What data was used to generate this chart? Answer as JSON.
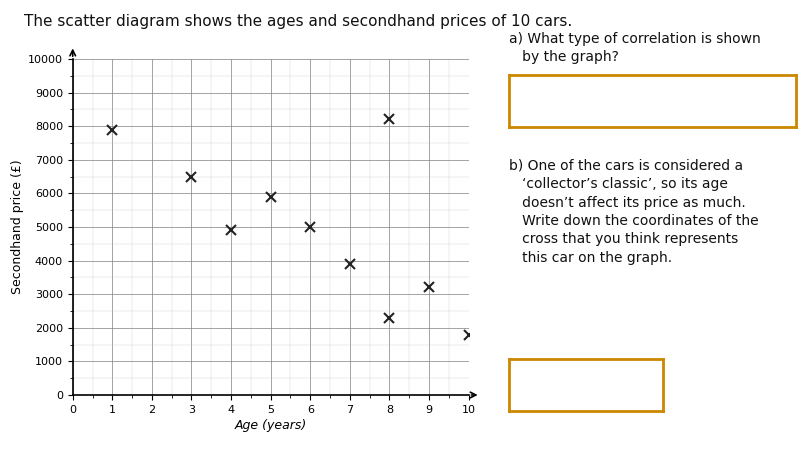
{
  "title": "The scatter diagram shows the ages and secondhand prices of 10 cars.",
  "points_x": [
    1,
    3,
    4,
    5,
    6,
    7,
    8,
    8,
    9,
    10
  ],
  "points_y": [
    7900,
    6500,
    4900,
    5900,
    5000,
    3900,
    8200,
    2300,
    3200,
    1800
  ],
  "xlabel": "Age (years)",
  "ylabel": "Secondhand price (£)",
  "xlim": [
    0,
    10
  ],
  "ylim": [
    0,
    10000
  ],
  "xticks": [
    0,
    1,
    2,
    3,
    4,
    5,
    6,
    7,
    8,
    9,
    10
  ],
  "yticks": [
    0,
    1000,
    2000,
    3000,
    4000,
    5000,
    6000,
    7000,
    8000,
    9000,
    10000
  ],
  "ytick_labels": [
    "0",
    "1000",
    "2000",
    "3000",
    "4000",
    "5000",
    "6000",
    "7000",
    "8000",
    "9000",
    "10000"
  ],
  "marker": "x",
  "marker_color": "#222222",
  "marker_size": 7,
  "marker_linewidth": 1.5,
  "grid_minor_color": "#bbbbbb",
  "grid_major_color": "#888888",
  "grid_linewidth_minor": 0.3,
  "grid_linewidth_major": 0.6,
  "background_color": "#ffffff",
  "question_a": "a) What type of correlation is shown\n   by the graph?",
  "question_b": "b) One of the cars is considered a\n   ‘collector’s classic’, so its age\n   doesn’t affect its price as much.\n   Write down the coordinates of the\n   cross that you think represents\n   this car on the graph.",
  "box_color": "#cc8800",
  "title_fontsize": 11,
  "label_fontsize": 9,
  "tick_fontsize": 8,
  "question_fontsize": 10
}
